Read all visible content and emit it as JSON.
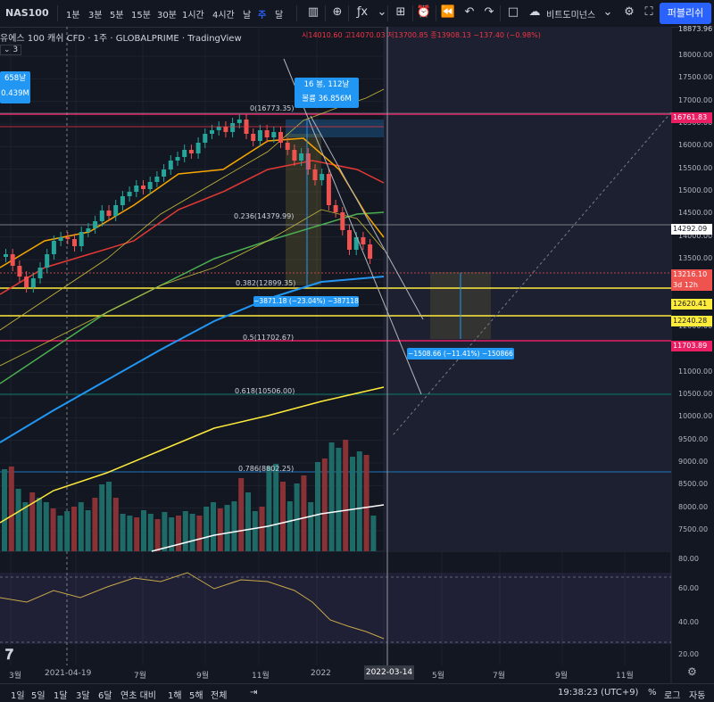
{
  "toolbar": {
    "symbol": "NAS100",
    "timeframes": [
      "1분",
      "3분",
      "5분",
      "15분",
      "30분",
      "1시간",
      "4시간",
      "날",
      "주",
      "달"
    ],
    "active_timeframe": "주",
    "publish_label": "퍼블리쉬",
    "indicators_label": "비트도미넌스"
  },
  "legend": {
    "title": "유에스 100 캐쉬 CFD · 1주 · GLOBALPRIME · TradingView",
    "ohlc": "시14010.60 고14070.03 저13700.85 종13908.13 −137.40 (−0.98%)",
    "indicator_count": "3"
  },
  "colors": {
    "background": "#131722",
    "up": "#26a69a",
    "down": "#ef5350",
    "accent": "#2962ff",
    "ma_orange": "#f7a600",
    "ma_red": "#e53935",
    "ma_green": "#4caf50",
    "ma_blue": "#2196f3",
    "ma_yellow": "#ffeb3b"
  },
  "price_axis": {
    "ticks": [
      "18000.00",
      "17500.00",
      "17000.00",
      "16500.00",
      "16000.00",
      "15500.00",
      "15000.00",
      "14500.00",
      "14000.00",
      "13500.00",
      "13000.00",
      "12500.00",
      "12000.00",
      "11500.00",
      "11000.00",
      "10500.00",
      "10000.00",
      "9500.00",
      "9000.00",
      "8500.00",
      "8000.00",
      "7500.00"
    ],
    "top_label": "18873.96",
    "tags": [
      {
        "label": "16761.83",
        "color": "#e91e63"
      },
      {
        "label": "14292.09",
        "color": "#ffffff"
      },
      {
        "label": "13216.10",
        "color": "#ef5350"
      },
      {
        "label": "3d 12h",
        "color": "#ef5350"
      },
      {
        "label": "12620.41",
        "color": "#ffeb3b"
      },
      {
        "label": "12240.28",
        "color": "#ffeb3b"
      },
      {
        "label": "11703.89",
        "color": "#e91e63"
      }
    ]
  },
  "osc_axis": {
    "ticks": [
      "80.00",
      "60.00",
      "40.00",
      "20.00"
    ]
  },
  "time_axis": {
    "ticks": [
      "3월",
      "2021-04-19",
      "7월",
      "9월",
      "11월",
      "2022",
      "2022-03-14",
      "5월",
      "7월",
      "9월",
      "11월"
    ],
    "crosshair_label": "2022-03-14"
  },
  "fib_levels": [
    {
      "label": "0(16773.35)",
      "color": "#787b86"
    },
    {
      "label": "0.236(14379.99)",
      "color": "#f23645"
    },
    {
      "label": "0.382(12899.35)",
      "color": "#81c784"
    },
    {
      "label": "0.5(11702.67)",
      "color": "#4caf50"
    },
    {
      "label": "0.618(10506.00)",
      "color": "#089981"
    },
    {
      "label": "0.786(8802.25)",
      "color": "#2196f3"
    }
  ],
  "callouts": {
    "range_left": [
      "658날",
      "0.439M"
    ],
    "range_main": [
      "16 봉, 112날",
      "볼륨 36.856M"
    ],
    "drop_1": "−3871.18 (−23.04%) −387118",
    "drop_2": "−1508.66 (−11.41%) −150866"
  },
  "chart_data": {
    "type": "candlestick",
    "title": "유에스 100 캐쉬 CFD",
    "x_axis_labels": [
      "3월",
      "2021-04-19",
      "7월",
      "9월",
      "11월",
      "2022",
      "2022-03-14",
      "5월",
      "7월",
      "9월",
      "11월"
    ],
    "ylim": [
      7000,
      18873.96
    ],
    "log_scale": true,
    "grid": true
  },
  "bottom_bar": {
    "ranges": [
      "1일",
      "5일",
      "1달",
      "3달",
      "6달",
      "연초 대비",
      "1해",
      "5해",
      "전체"
    ],
    "time": "19:38:23 (UTC+9)",
    "percent": "%",
    "log": "로그",
    "auto": "자동"
  }
}
